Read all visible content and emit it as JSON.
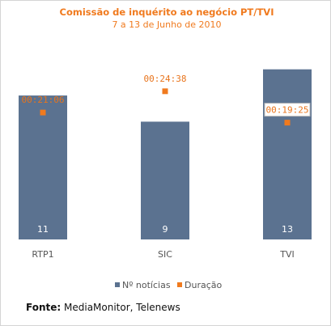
{
  "chart_data": {
    "type": "bar",
    "title": "Comissão de inquérito ao negócio PT/TVI",
    "subtitle": "7 a 13 de Junho de 2010",
    "categories": [
      "RTP1",
      "SIC",
      "TVI"
    ],
    "series": [
      {
        "name": "Nº notícias",
        "type": "bar",
        "values": [
          11,
          9,
          13
        ],
        "color": "#5b7290"
      },
      {
        "name": "Duração",
        "type": "scatter",
        "values": [
          "00:21:06",
          "00:24:38",
          "00:19:25"
        ],
        "values_seconds": [
          1266,
          1478,
          1165
        ],
        "color": "#f07a1e"
      }
    ],
    "ylim_bars": [
      0,
      13.6
    ],
    "ylim_duration_seconds": [
      0,
      1775
    ],
    "grid": false,
    "legend": "bottom"
  },
  "source": {
    "label": "Fonte:",
    "text": "MediaMonitor, Telenews"
  }
}
